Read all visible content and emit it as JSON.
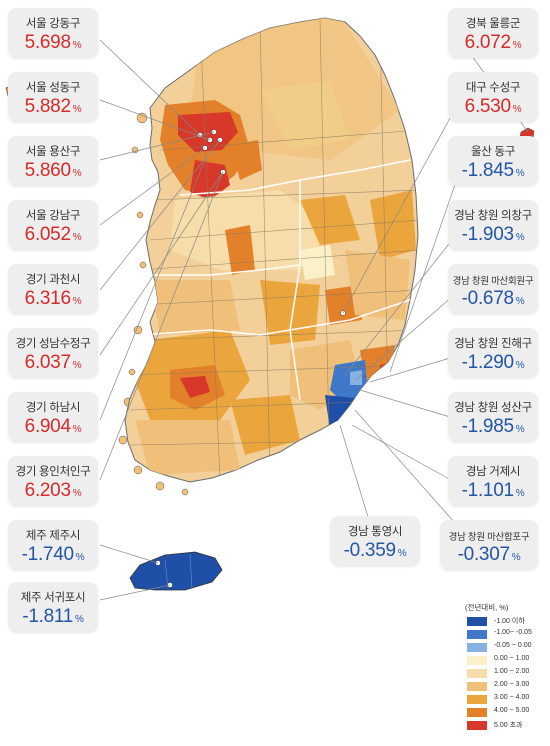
{
  "regions": [
    {
      "name": "서울 강동구",
      "value": "5.698",
      "sign": "pos"
    },
    {
      "name": "서울 성동구",
      "value": "5.882",
      "sign": "pos"
    },
    {
      "name": "서울 용산구",
      "value": "5.860",
      "sign": "pos"
    },
    {
      "name": "서울 강남구",
      "value": "6.052",
      "sign": "pos"
    },
    {
      "name": "경기 과천시",
      "value": "6.316",
      "sign": "pos"
    },
    {
      "name": "경기 성남수정구",
      "value": "6.037",
      "sign": "pos"
    },
    {
      "name": "경기 하남시",
      "value": "6.904",
      "sign": "pos"
    },
    {
      "name": "경기 용인처인구",
      "value": "6.203",
      "sign": "pos"
    },
    {
      "name": "제주 제주시",
      "value": "-1.740",
      "sign": "neg"
    },
    {
      "name": "제주 서귀포시",
      "value": "-1.811",
      "sign": "neg"
    },
    {
      "name": "경북 울릉군",
      "value": "6.072",
      "sign": "pos"
    },
    {
      "name": "대구 수성구",
      "value": "6.530",
      "sign": "pos"
    },
    {
      "name": "울산 동구",
      "value": "-1.845",
      "sign": "neg"
    },
    {
      "name": "경남 창원 의창구",
      "value": "-1.903",
      "sign": "neg"
    },
    {
      "name": "경남 창원 마산회원구",
      "value": "-0.678",
      "sign": "neg"
    },
    {
      "name": "경남 창원 진해구",
      "value": "-1.290",
      "sign": "neg"
    },
    {
      "name": "경남 창원 성산구",
      "value": "-1.985",
      "sign": "neg"
    },
    {
      "name": "경남 거제시",
      "value": "-1.101",
      "sign": "neg"
    },
    {
      "name": "경남 창원 마산합포구",
      "value": "-0.307",
      "sign": "neg"
    },
    {
      "name": "경남 통영시",
      "value": "-0.359",
      "sign": "neg"
    }
  ],
  "percent_unit": "%",
  "legend": {
    "title": "(전년대비, %)",
    "items": [
      {
        "label": "-1.00 이하",
        "color": "#1f4fa6"
      },
      {
        "label": "-1.00~ -0.05",
        "color": "#3f78c8"
      },
      {
        "label": "-0.05 ~ 0.00",
        "color": "#86b1e0"
      },
      {
        "label": "0.00 ~ 1.00",
        "color": "#fbf1c8"
      },
      {
        "label": "1.00 ~ 2.00",
        "color": "#f6ddaa"
      },
      {
        "label": "2.00 ~ 3.00",
        "color": "#f0c07a"
      },
      {
        "label": "3.00 ~ 4.00",
        "color": "#eba53d"
      },
      {
        "label": "4.00 ~ 5.00",
        "color": "#e2812a"
      },
      {
        "label": "5.00 초과",
        "color": "#d8382a"
      }
    ]
  }
}
